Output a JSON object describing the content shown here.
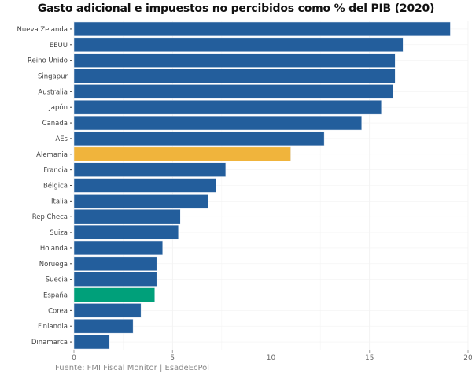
{
  "chart_data": {
    "type": "bar",
    "orientation": "horizontal",
    "title": "Gasto adicional e impuestos no percibidos como % del PIB (2020)",
    "source": "Fuente: FMI Fiscal Monitor | EsadeEcPol",
    "xlabel": "",
    "ylabel": "",
    "xlim": [
      0,
      20
    ],
    "xticks": [
      "0",
      "5",
      "10",
      "15",
      "20"
    ],
    "xtick_values": [
      0,
      5,
      10,
      15,
      20
    ],
    "grid": true,
    "categories": [
      "Nueva Zelanda",
      "EEUU",
      "Reino Unido",
      "Singapur",
      "Australia",
      "Japón",
      "Canada",
      "AEs",
      "Alemania",
      "Francia",
      "Bélgica",
      "Italia",
      "Rep Checa",
      "Suiza",
      "Holanda",
      "Noruega",
      "Suecia",
      "España",
      "Corea",
      "Finlandia",
      "Dinamarca"
    ],
    "values": [
      19.1,
      16.7,
      16.3,
      16.3,
      16.2,
      15.6,
      14.6,
      12.7,
      11.0,
      7.7,
      7.2,
      6.8,
      5.4,
      5.3,
      4.5,
      4.2,
      4.2,
      4.1,
      3.4,
      3.0,
      1.8
    ],
    "colors": {
      "default": "#235e9c",
      "Alemania": "#f0b43c",
      "España": "#00a07a"
    }
  }
}
